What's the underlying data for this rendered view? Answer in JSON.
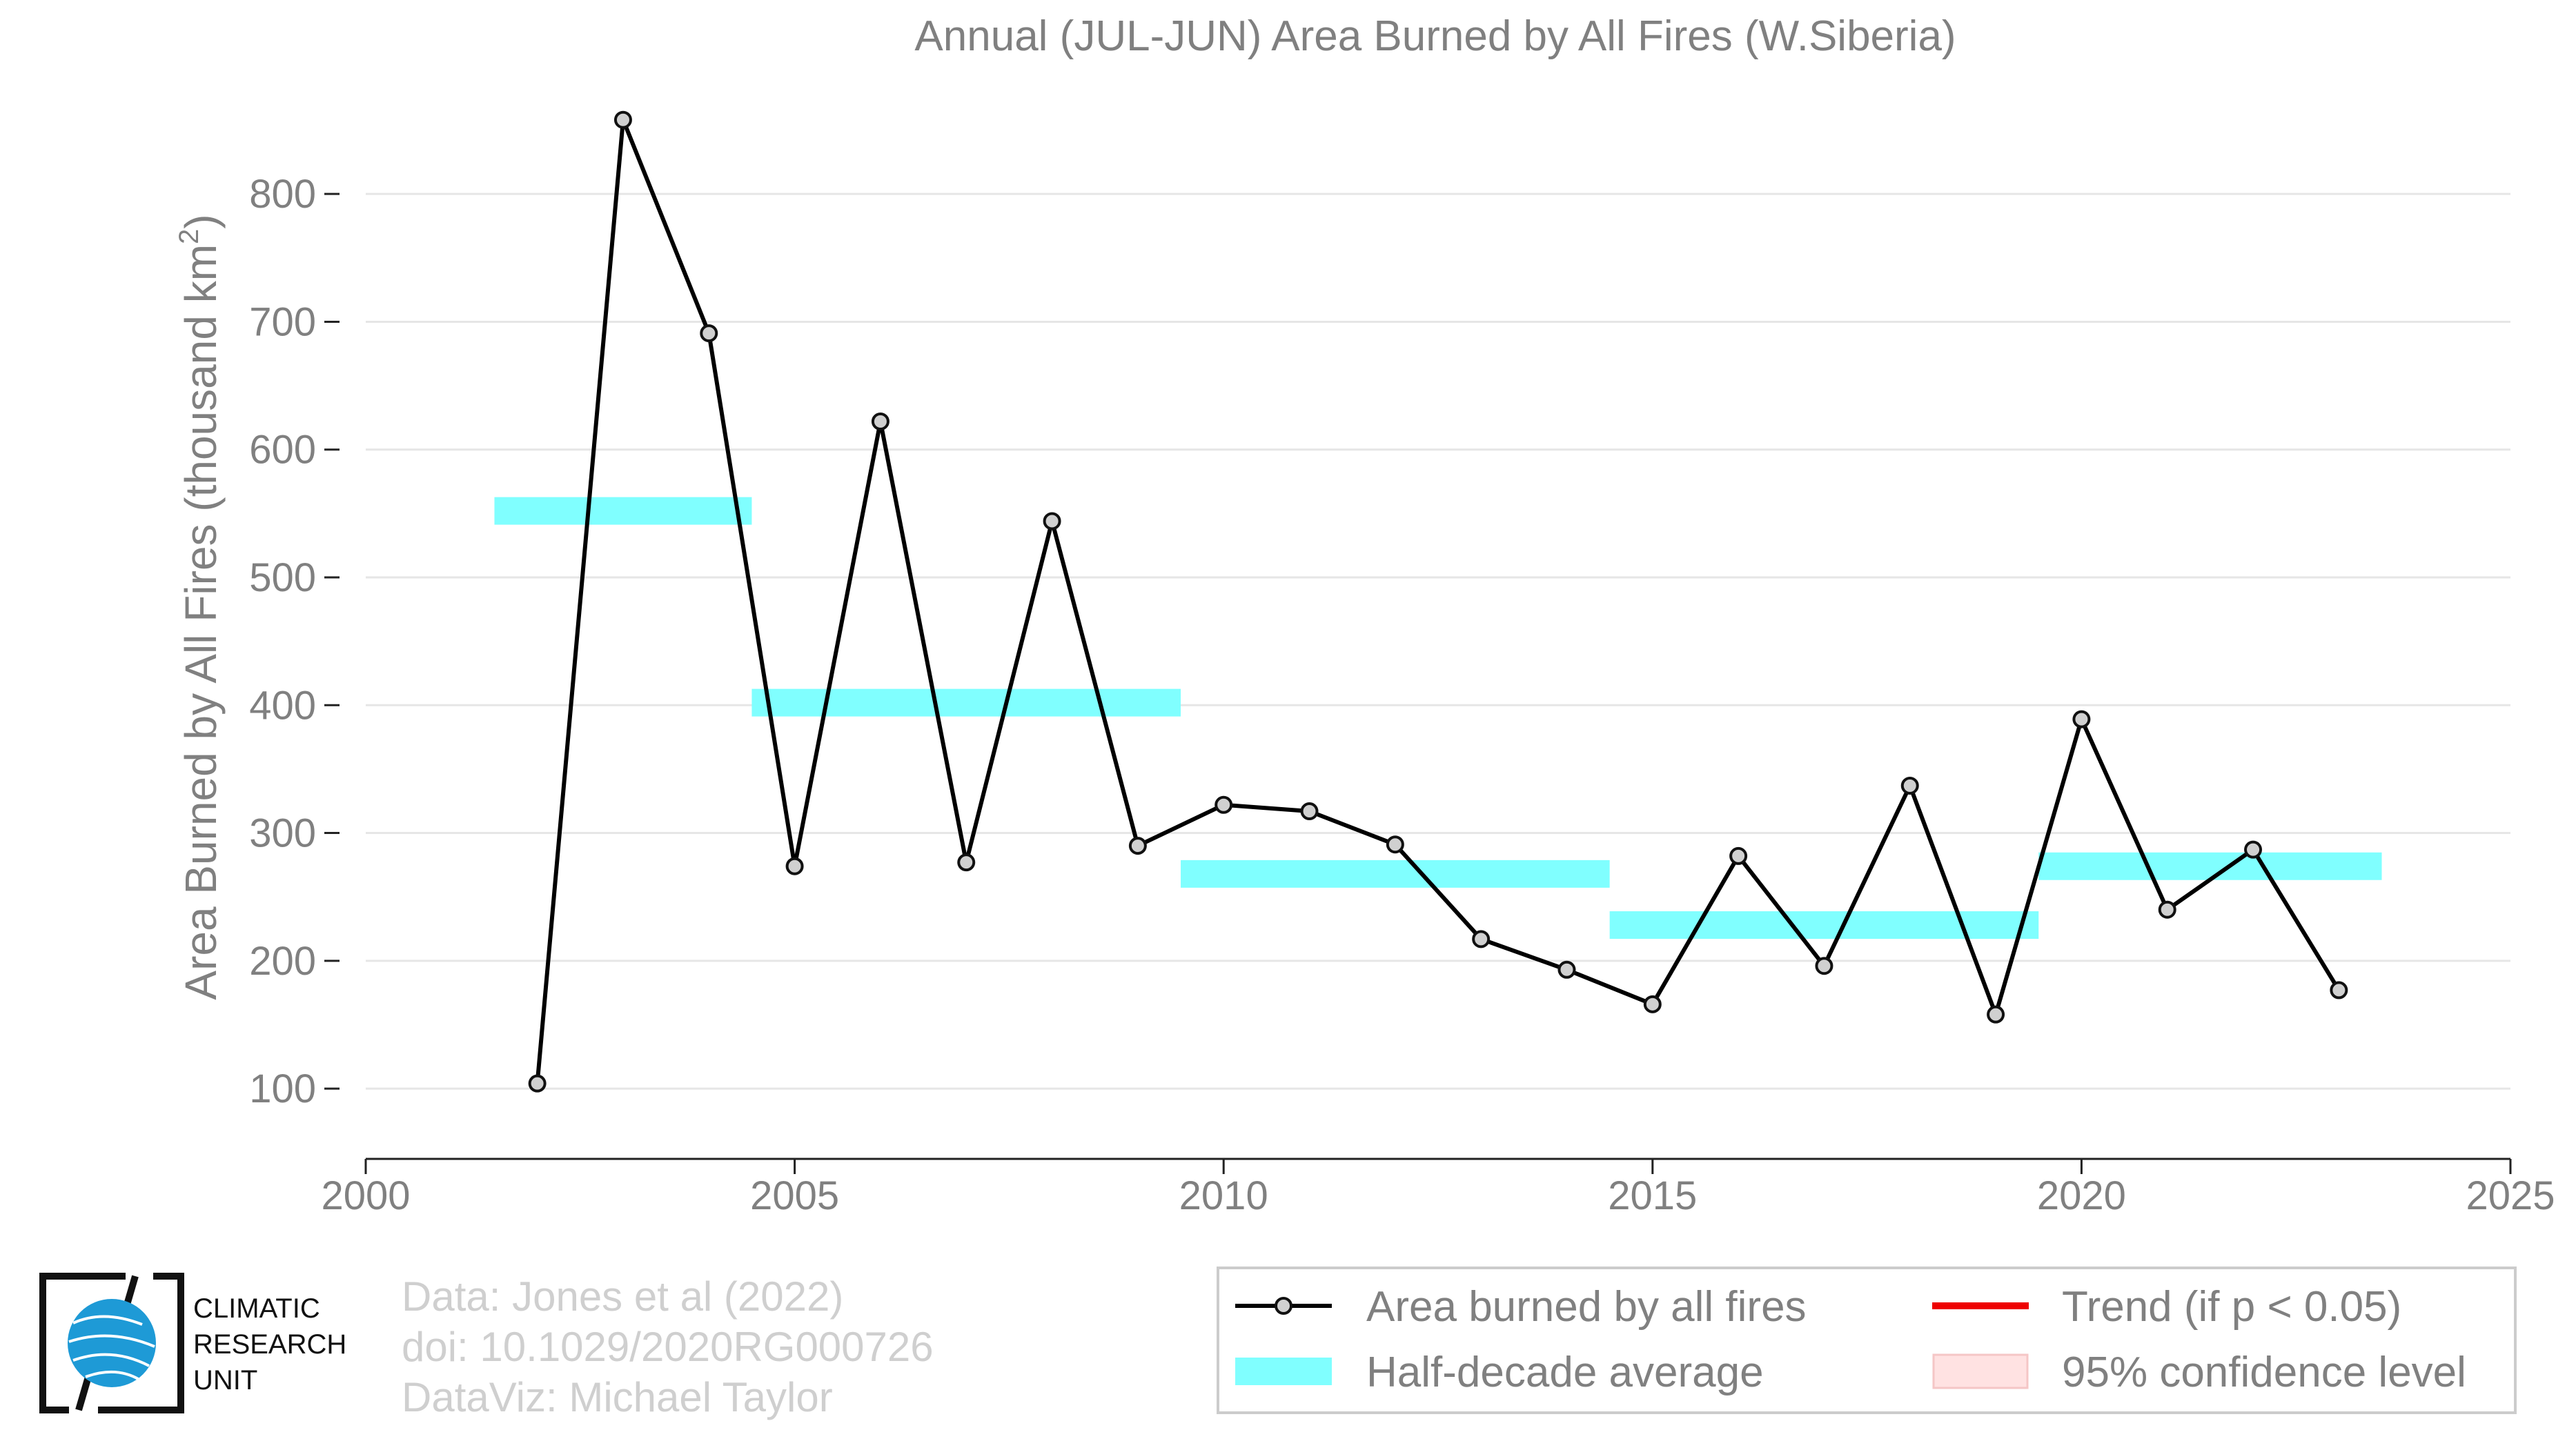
{
  "chart_data": {
    "type": "line",
    "title": "Annual (JUL-JUN) Area Burned by All Fires (W.Siberia)",
    "xlabel": "",
    "ylabel": "Area Burned by All Fires (thousand km",
    "ylabel_superscript": "2",
    "ylabel_suffix": ")",
    "xlim": [
      2000,
      2025
    ],
    "ylim": [
      45,
      860
    ],
    "x_ticks": [
      2000,
      2005,
      2010,
      2015,
      2020,
      2025
    ],
    "y_ticks": [
      100,
      200,
      300,
      400,
      500,
      600,
      700,
      800
    ],
    "grid": "horizontal",
    "legend_position": "bottom-right",
    "series": [
      {
        "name": "Area burned by all fires",
        "type": "line",
        "color": "#000000",
        "marker_fill": "#d0d0d0",
        "x": [
          2002,
          2003,
          2004,
          2005,
          2006,
          2007,
          2008,
          2009,
          2010,
          2011,
          2012,
          2013,
          2014,
          2015,
          2016,
          2017,
          2018,
          2019,
          2020,
          2021,
          2022,
          2023
        ],
        "y": [
          104,
          858,
          691,
          274,
          622,
          277,
          544,
          290,
          322,
          317,
          291,
          217,
          193,
          166,
          282,
          196,
          337,
          158,
          389,
          240,
          287,
          177
        ]
      },
      {
        "name": "Half-decade average",
        "type": "step",
        "color": "#80ffff",
        "segments": [
          {
            "x0": 2001.5,
            "x1": 2004.5,
            "y": 552
          },
          {
            "x0": 2004.5,
            "x1": 2009.5,
            "y": 402
          },
          {
            "x0": 2009.5,
            "x1": 2014.5,
            "y": 268
          },
          {
            "x0": 2014.5,
            "x1": 2019.5,
            "y": 228
          },
          {
            "x0": 2019.5,
            "x1": 2023.5,
            "y": 274
          }
        ]
      }
    ],
    "legend": [
      {
        "label": "Area burned by all fires",
        "symbol": "line-marker",
        "color": "#000000"
      },
      {
        "label": "Trend (if p < 0.05)",
        "symbol": "line",
        "color": "#ee0000"
      },
      {
        "label": "Half-decade average",
        "symbol": "band",
        "color": "#80ffff"
      },
      {
        "label": "95% confidence level",
        "symbol": "box",
        "color": "#ffe2e2"
      }
    ]
  },
  "credits": {
    "line1": "Data: Jones et al (2022)",
    "line2": "doi: 10.1029/2020RG000726",
    "line3": "DataViz: Michael Taylor"
  },
  "logo": {
    "line1": "CLIMATIC",
    "line2": "RESEARCH",
    "line3": "UNIT",
    "globe_color": "#1e9ad6"
  }
}
